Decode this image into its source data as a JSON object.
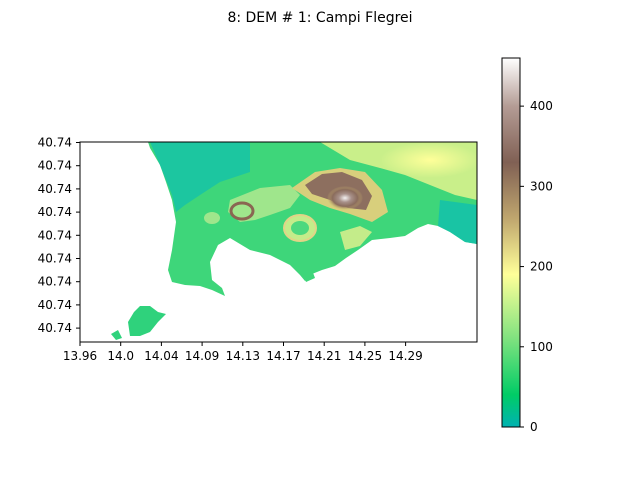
{
  "chart_data": {
    "type": "heatmap",
    "title": "8: DEM # 1: Campi Flegrei",
    "xlabel": "",
    "ylabel": "",
    "x_ticks": [
      "13.96",
      "14.0",
      "14.04",
      "14.09",
      "14.13",
      "14.17",
      "14.21",
      "14.25",
      "14.29"
    ],
    "y_ticks": [
      "40.74",
      "40.74",
      "40.74",
      "40.74",
      "40.74",
      "40.74",
      "40.74",
      "40.74",
      "40.74"
    ],
    "colorbar": {
      "min": 0,
      "max": 460,
      "ticks": [
        0,
        100,
        200,
        300,
        400
      ],
      "colormap": "terrain",
      "stops": [
        {
          "v": 0,
          "c": "#00b2b2"
        },
        {
          "v": 40,
          "c": "#00cc66"
        },
        {
          "v": 110,
          "c": "#7fe27f"
        },
        {
          "v": 190,
          "c": "#ffff99"
        },
        {
          "v": 260,
          "c": "#bfa66e"
        },
        {
          "v": 330,
          "c": "#806054"
        },
        {
          "v": 400,
          "c": "#b49c95"
        },
        {
          "v": 460,
          "c": "#ffffff"
        }
      ]
    },
    "grid": false,
    "legend": "colorbar-right"
  }
}
